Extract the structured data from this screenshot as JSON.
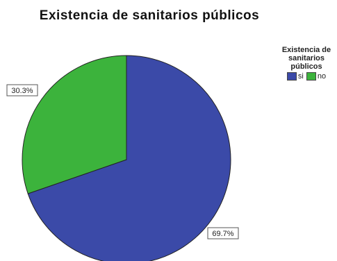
{
  "chart_data": {
    "type": "pie",
    "title": "Existencia de  sanitarios públicos",
    "legend_title": "Existencia de sanitarios públicos",
    "legend_position": "top-right",
    "slices": [
      {
        "label": "si",
        "value": 69.7,
        "value_label": "69.7%",
        "color": "#3b4aa8"
      },
      {
        "label": "no",
        "value": 30.3,
        "value_label": "30.3%",
        "color": "#3cb33c"
      }
    ]
  }
}
